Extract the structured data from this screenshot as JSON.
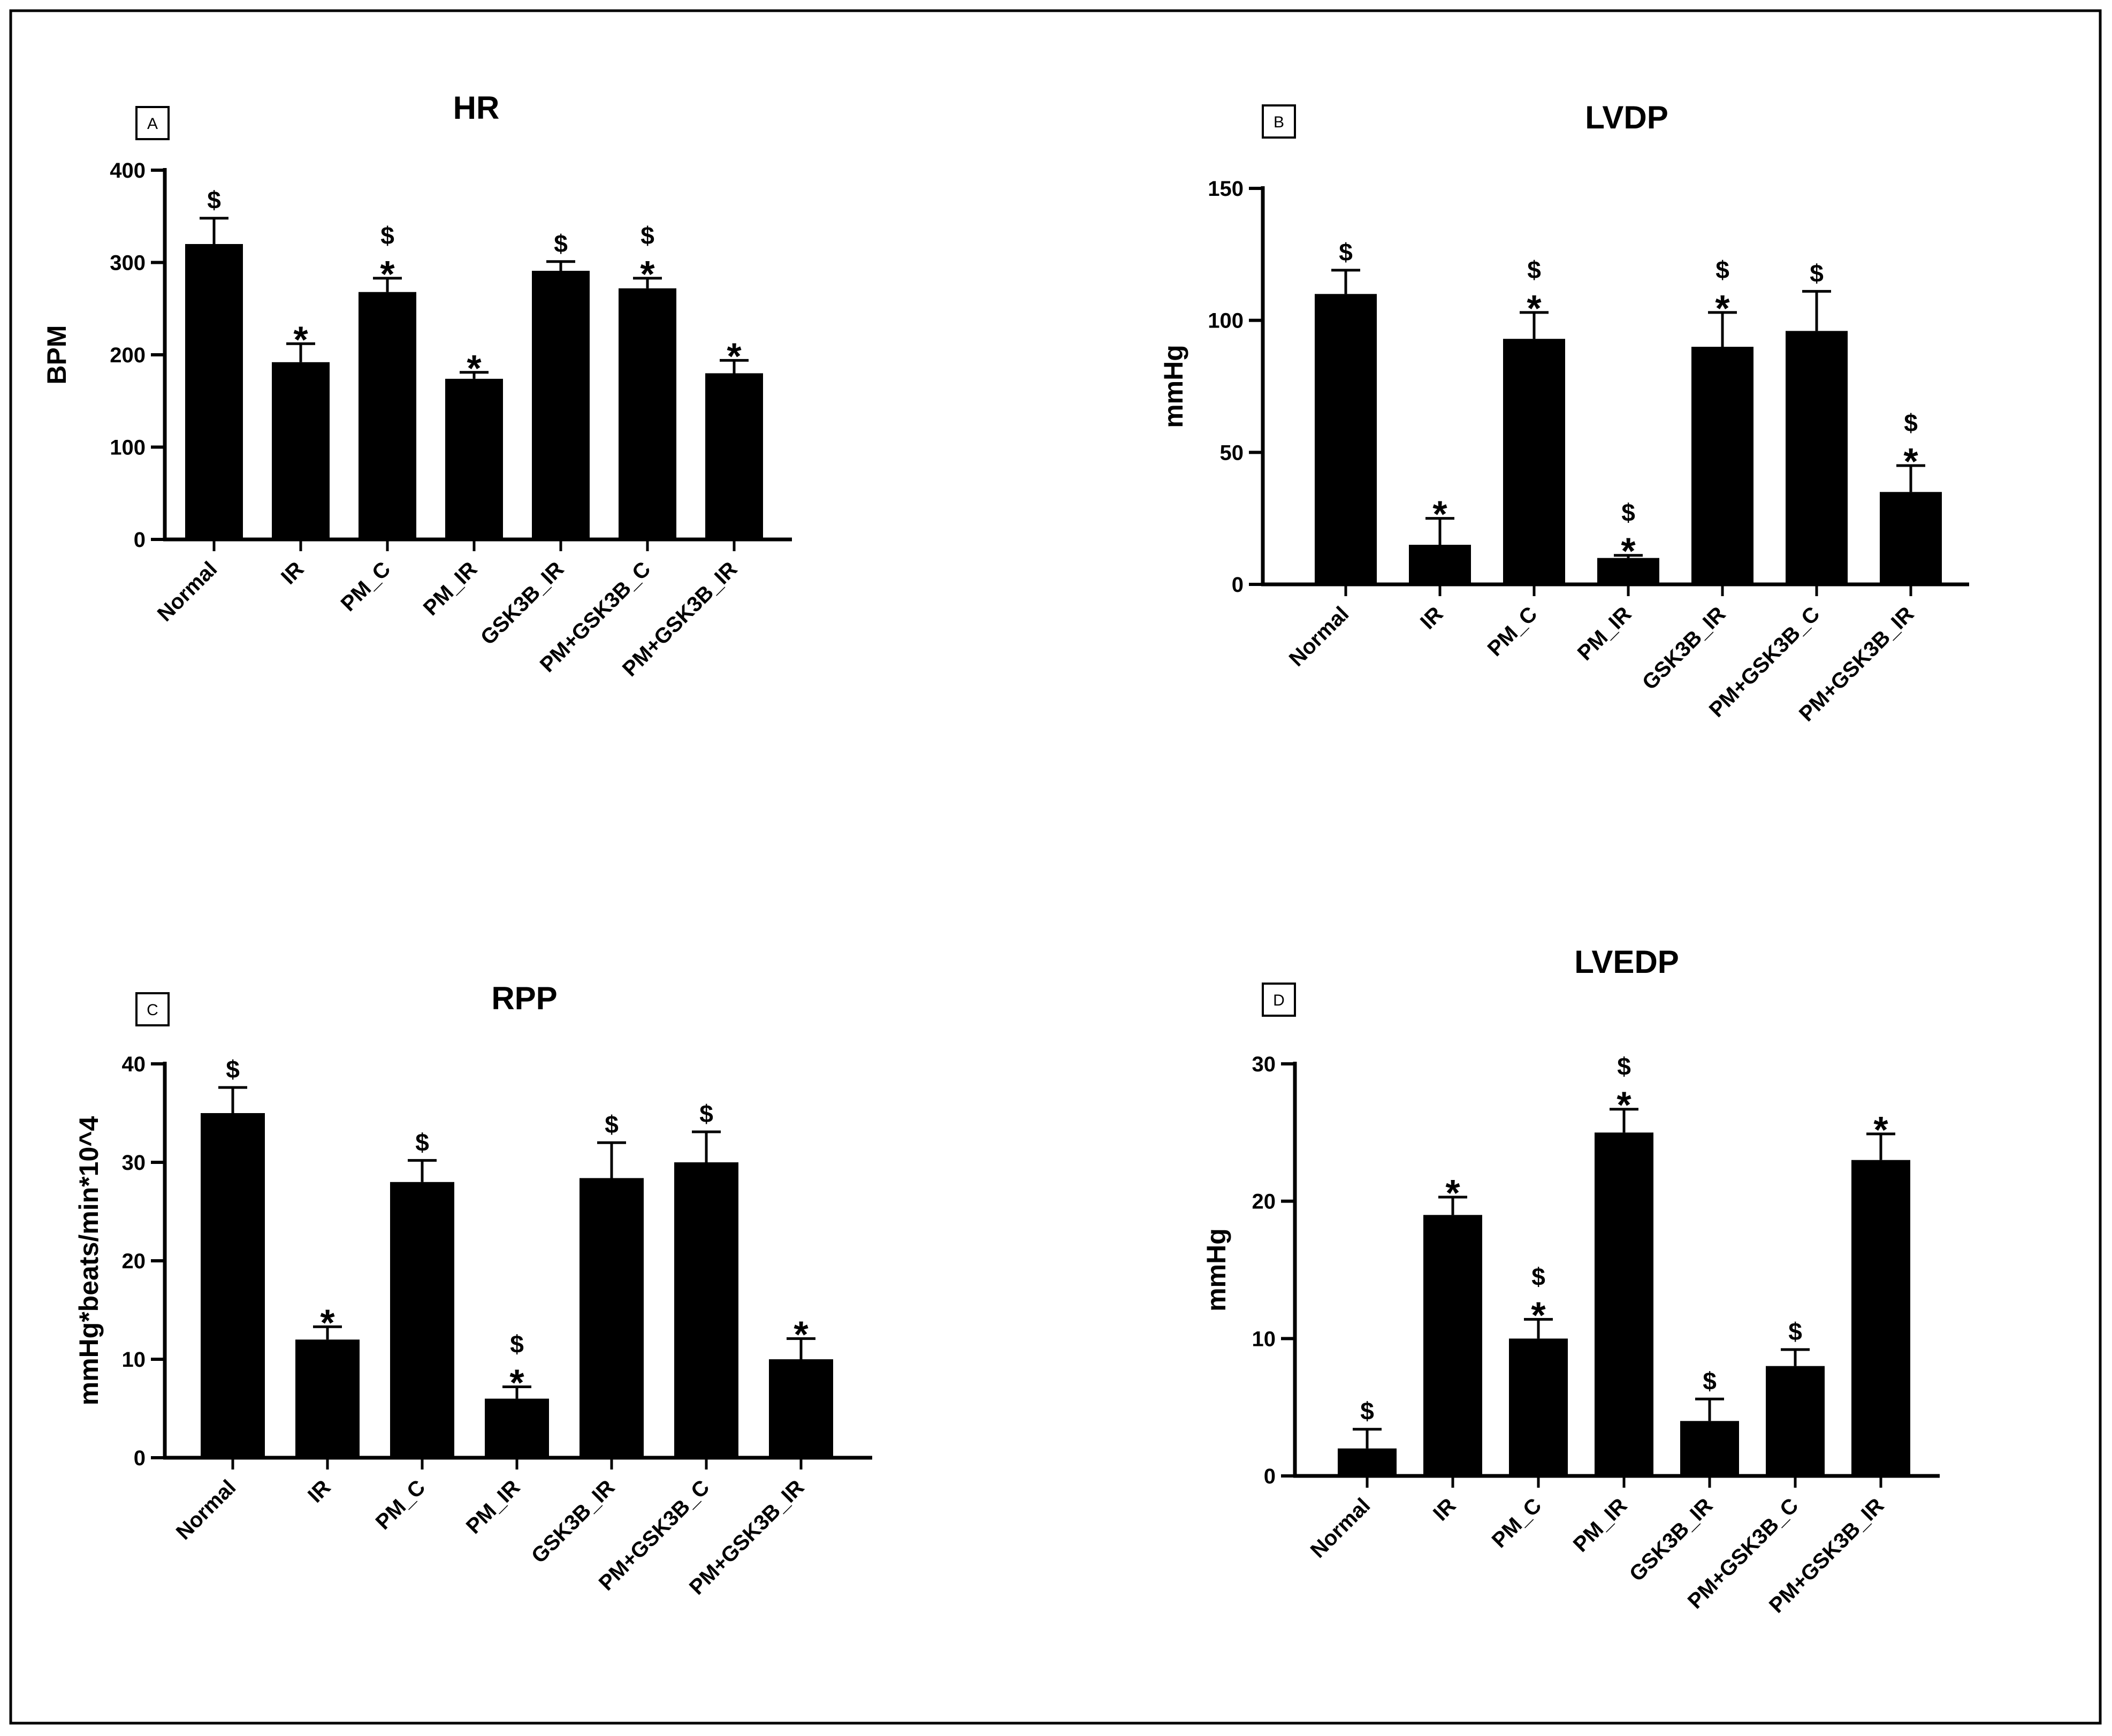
{
  "chart_data": [
    {
      "panel": "A",
      "type": "bar",
      "title": "HR",
      "ylabel": "BPM",
      "xlabel": "",
      "ylim": [
        0,
        400
      ],
      "yticks": [
        0,
        100,
        200,
        300,
        400
      ],
      "categories": [
        "Normal",
        "IR",
        "PM_C",
        "PM_IR",
        "GSK3B_IR",
        "PM+GSK3B_C",
        "PM+GSK3B_IR"
      ],
      "values": [
        320,
        192,
        268,
        174,
        291,
        272,
        180
      ],
      "errors": [
        28,
        20,
        15,
        7,
        10,
        11,
        14
      ],
      "annotations": [
        [
          "$"
        ],
        [
          "*"
        ],
        [
          "$",
          "*"
        ],
        [
          "*"
        ],
        [
          "$"
        ],
        [
          "$",
          "*"
        ],
        [
          "*"
        ]
      ]
    },
    {
      "panel": "B",
      "type": "bar",
      "title": "LVDP",
      "ylabel": "mmHg",
      "xlabel": "",
      "ylim": [
        0,
        150
      ],
      "yticks": [
        0,
        50,
        100,
        150
      ],
      "categories": [
        "Normal",
        "IR",
        "PM_C",
        "PM_IR",
        "GSK3B_IR",
        "PM+GSK3B_C",
        "PM+GSK3B_IR"
      ],
      "values": [
        110,
        15,
        93,
        10,
        90,
        96,
        35
      ],
      "errors": [
        9,
        10,
        10,
        1,
        13,
        15,
        10
      ],
      "annotations": [
        [
          "$"
        ],
        [
          "*"
        ],
        [
          "$",
          "*"
        ],
        [
          "$",
          "*"
        ],
        [
          "$",
          "*"
        ],
        [
          "$"
        ],
        [
          "$",
          "*"
        ]
      ]
    },
    {
      "panel": "C",
      "type": "bar",
      "title": "RPP",
      "ylabel": "mmHg*beats/min*10^4",
      "xlabel": "",
      "ylim": [
        0,
        40
      ],
      "yticks": [
        0,
        10,
        20,
        30,
        40
      ],
      "categories": [
        "Normal",
        "IR",
        "PM_C",
        "PM_IR",
        "GSK3B_IR",
        "PM+GSK3B_C",
        "PM+GSK3B_IR"
      ],
      "values": [
        35,
        12,
        28,
        6,
        28.4,
        30,
        10
      ],
      "errors": [
        2.6,
        1.3,
        2.2,
        1.2,
        3.6,
        3.1,
        2.1
      ],
      "annotations": [
        [
          "$"
        ],
        [
          "*"
        ],
        [
          "$"
        ],
        [
          "$",
          "*"
        ],
        [
          "$"
        ],
        [
          "$"
        ],
        [
          "*"
        ]
      ]
    },
    {
      "panel": "D",
      "type": "bar",
      "title": "LVEDP",
      "ylabel": "mmHg",
      "xlabel": "",
      "ylim": [
        0,
        30
      ],
      "yticks": [
        0,
        10,
        20,
        30
      ],
      "categories": [
        "Normal",
        "IR",
        "PM_C",
        "PM_IR",
        "GSK3B_IR",
        "PM+GSK3B_C",
        "PM+GSK3B_IR"
      ],
      "values": [
        2,
        19,
        10,
        25,
        4,
        8,
        23
      ],
      "errors": [
        1.4,
        1.3,
        1.4,
        1.7,
        1.6,
        1.2,
        1.9
      ],
      "annotations": [
        [
          "$"
        ],
        [
          "*"
        ],
        [
          "$",
          "*"
        ],
        [
          "$",
          "*"
        ],
        [
          "$"
        ],
        [
          "$"
        ],
        [
          "*"
        ]
      ]
    }
  ]
}
